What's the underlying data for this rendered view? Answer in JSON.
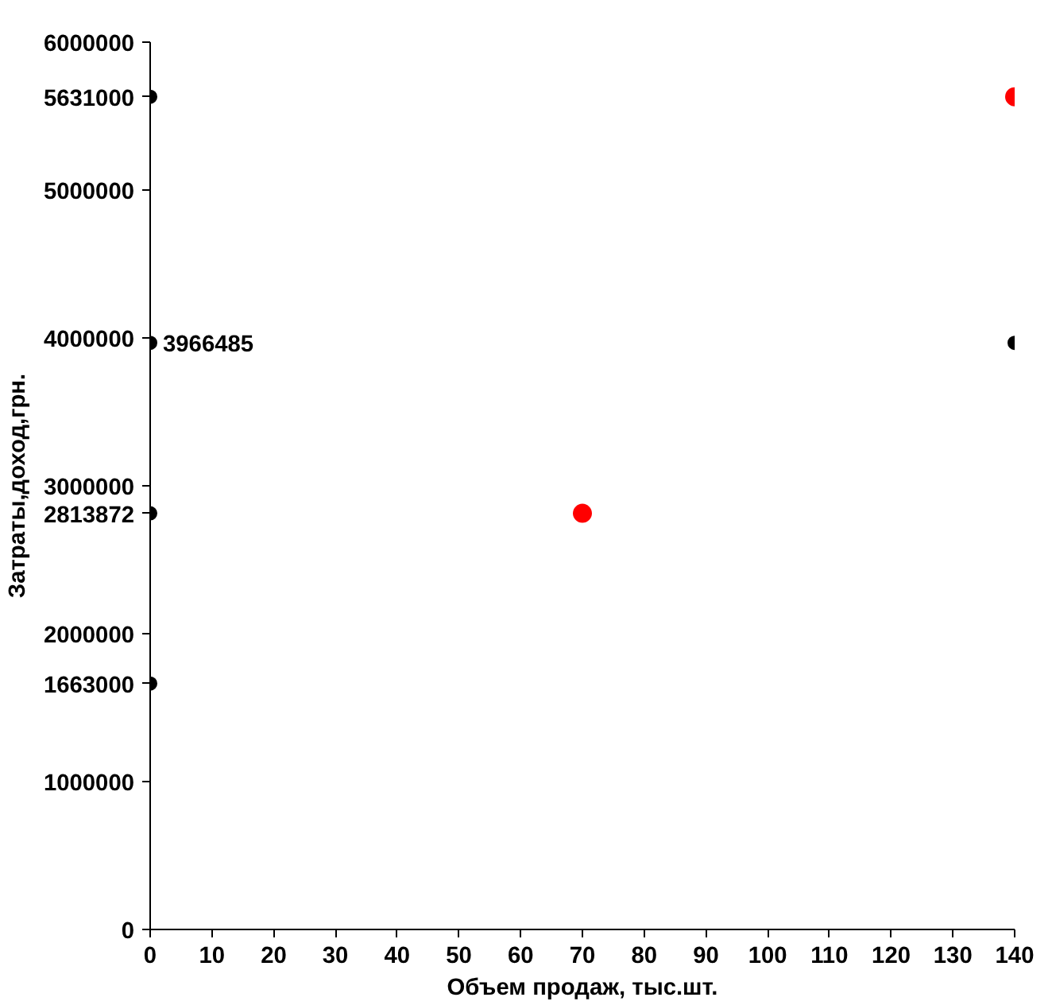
{
  "chart_data": {
    "type": "scatter",
    "xlabel": "Объем продаж, тыс.шт.",
    "ylabel": "Затраты,доход,грн.",
    "series": [
      {
        "color": "#000000",
        "x": [
          0,
          0,
          0,
          0,
          140
        ],
        "values": [
          5631000,
          3966485,
          2813872,
          1663000,
          3966485
        ]
      },
      {
        "color": "#ff0000",
        "x": [
          70,
          140
        ],
        "values": [
          2813872,
          5631000
        ]
      }
    ],
    "xlim": [
      0,
      140
    ],
    "xticks": [
      0,
      10,
      20,
      30,
      40,
      50,
      60,
      70,
      80,
      90,
      100,
      110,
      120,
      130,
      140
    ],
    "ylim": [
      0,
      6000000
    ],
    "yticks": [
      0,
      1000000,
      1663000,
      2000000,
      2813872,
      3000000,
      4000000,
      5000000,
      5631000,
      6000000
    ],
    "annotations": [
      {
        "text": "3966485",
        "x": 0,
        "y": 3966485
      }
    ],
    "grid": false,
    "marker": "circle"
  }
}
